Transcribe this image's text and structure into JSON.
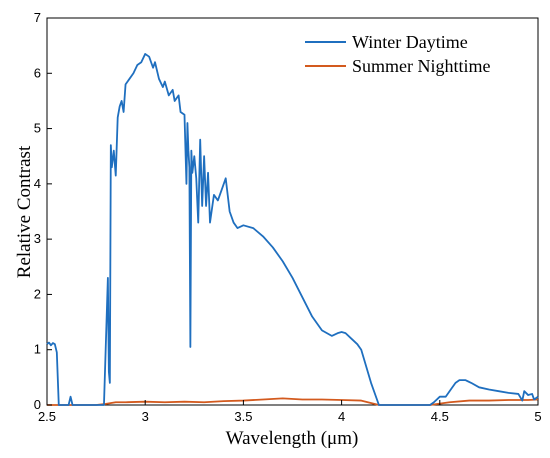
{
  "chart_data": {
    "type": "line",
    "title": "",
    "xlabel": "Wavelength (μm)",
    "ylabel": "Relative Contrast",
    "xlim": [
      2.5,
      5
    ],
    "ylim": [
      0,
      7
    ],
    "xticks": [
      "2.5",
      "3",
      "3.5",
      "4",
      "4.5",
      "5"
    ],
    "yticks": [
      "0",
      "1",
      "2",
      "3",
      "4",
      "5",
      "6",
      "7"
    ],
    "grid": false,
    "legend_position": "top-right",
    "series": [
      {
        "name": "Winter Daytime",
        "color": "#1f6fbf",
        "points": [
          [
            2.5,
            1.1
          ],
          [
            2.51,
            1.13
          ],
          [
            2.52,
            1.08
          ],
          [
            2.53,
            1.12
          ],
          [
            2.54,
            1.1
          ],
          [
            2.55,
            0.95
          ],
          [
            2.56,
            0.0
          ],
          [
            2.6,
            0.0
          ],
          [
            2.61,
            0.0
          ],
          [
            2.62,
            0.15
          ],
          [
            2.63,
            0.0
          ],
          [
            2.79,
            0.0
          ],
          [
            2.81,
            2.3
          ],
          [
            2.815,
            0.6
          ],
          [
            2.82,
            0.4
          ],
          [
            2.825,
            4.7
          ],
          [
            2.83,
            4.3
          ],
          [
            2.84,
            4.6
          ],
          [
            2.85,
            4.15
          ],
          [
            2.86,
            5.2
          ],
          [
            2.87,
            5.4
          ],
          [
            2.88,
            5.5
          ],
          [
            2.89,
            5.3
          ],
          [
            2.9,
            5.8
          ],
          [
            2.92,
            5.9
          ],
          [
            2.94,
            6.0
          ],
          [
            2.96,
            6.15
          ],
          [
            2.98,
            6.2
          ],
          [
            3.0,
            6.35
          ],
          [
            3.02,
            6.3
          ],
          [
            3.04,
            6.1
          ],
          [
            3.05,
            6.2
          ],
          [
            3.07,
            5.9
          ],
          [
            3.09,
            5.75
          ],
          [
            3.1,
            5.85
          ],
          [
            3.12,
            5.6
          ],
          [
            3.14,
            5.7
          ],
          [
            3.15,
            5.5
          ],
          [
            3.17,
            5.6
          ],
          [
            3.18,
            5.3
          ],
          [
            3.2,
            5.25
          ],
          [
            3.21,
            4.0
          ],
          [
            3.215,
            5.1
          ],
          [
            3.22,
            4.6
          ],
          [
            3.225,
            4.3
          ],
          [
            3.23,
            1.05
          ],
          [
            3.235,
            4.6
          ],
          [
            3.24,
            4.2
          ],
          [
            3.25,
            4.5
          ],
          [
            3.26,
            4.1
          ],
          [
            3.27,
            3.3
          ],
          [
            3.28,
            4.8
          ],
          [
            3.29,
            3.6
          ],
          [
            3.3,
            4.5
          ],
          [
            3.31,
            3.6
          ],
          [
            3.32,
            4.2
          ],
          [
            3.33,
            3.3
          ],
          [
            3.35,
            3.8
          ],
          [
            3.37,
            3.7
          ],
          [
            3.39,
            3.9
          ],
          [
            3.41,
            4.1
          ],
          [
            3.43,
            3.5
          ],
          [
            3.45,
            3.3
          ],
          [
            3.47,
            3.2
          ],
          [
            3.5,
            3.25
          ],
          [
            3.55,
            3.2
          ],
          [
            3.6,
            3.05
          ],
          [
            3.65,
            2.85
          ],
          [
            3.7,
            2.6
          ],
          [
            3.75,
            2.3
          ],
          [
            3.8,
            1.95
          ],
          [
            3.85,
            1.6
          ],
          [
            3.9,
            1.35
          ],
          [
            3.95,
            1.25
          ],
          [
            3.98,
            1.3
          ],
          [
            4.0,
            1.32
          ],
          [
            4.02,
            1.3
          ],
          [
            4.05,
            1.2
          ],
          [
            4.08,
            1.1
          ],
          [
            4.1,
            1.0
          ],
          [
            4.15,
            0.4
          ],
          [
            4.19,
            0.0
          ],
          [
            4.45,
            0.0
          ],
          [
            4.47,
            0.05
          ],
          [
            4.5,
            0.15
          ],
          [
            4.53,
            0.15
          ],
          [
            4.56,
            0.3
          ],
          [
            4.58,
            0.4
          ],
          [
            4.6,
            0.45
          ],
          [
            4.63,
            0.45
          ],
          [
            4.66,
            0.4
          ],
          [
            4.7,
            0.32
          ],
          [
            4.75,
            0.28
          ],
          [
            4.8,
            0.25
          ],
          [
            4.85,
            0.22
          ],
          [
            4.9,
            0.2
          ],
          [
            4.92,
            0.08
          ],
          [
            4.93,
            0.25
          ],
          [
            4.95,
            0.18
          ],
          [
            4.97,
            0.2
          ],
          [
            4.98,
            0.1
          ],
          [
            5.0,
            0.15
          ]
        ]
      },
      {
        "name": "Summer Nighttime",
        "color": "#d35a1e",
        "points": [
          [
            2.5,
            0.0
          ],
          [
            2.75,
            0.0
          ],
          [
            2.8,
            0.02
          ],
          [
            2.85,
            0.05
          ],
          [
            2.9,
            0.05
          ],
          [
            3.0,
            0.06
          ],
          [
            3.1,
            0.05
          ],
          [
            3.2,
            0.06
          ],
          [
            3.3,
            0.05
          ],
          [
            3.4,
            0.07
          ],
          [
            3.5,
            0.08
          ],
          [
            3.6,
            0.1
          ],
          [
            3.7,
            0.12
          ],
          [
            3.8,
            0.1
          ],
          [
            3.9,
            0.1
          ],
          [
            4.0,
            0.09
          ],
          [
            4.1,
            0.08
          ],
          [
            4.19,
            0.0
          ],
          [
            4.45,
            0.0
          ],
          [
            4.55,
            0.05
          ],
          [
            4.65,
            0.08
          ],
          [
            4.75,
            0.08
          ],
          [
            4.85,
            0.09
          ],
          [
            4.95,
            0.09
          ],
          [
            5.0,
            0.1
          ]
        ]
      }
    ]
  }
}
